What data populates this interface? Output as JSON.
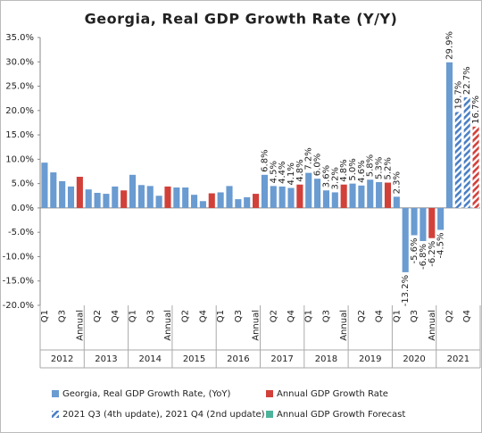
{
  "chart_data": {
    "type": "bar",
    "title": "Georgia, Real GDP Growth Rate (Y/Y)",
    "categories": [
      "Q1",
      null,
      "Q3",
      null,
      "Annual",
      null,
      "Q2",
      null,
      "Q4",
      null,
      "Q1",
      null,
      "Q3",
      null,
      "Annual",
      null,
      "Q2",
      null,
      "Q4",
      null,
      "Q1",
      null,
      "Q3",
      null,
      "Annual",
      null,
      "Q2",
      null,
      "Q4",
      null,
      "Q1",
      null,
      "Q3",
      null,
      "Annual",
      null,
      "Q2",
      null,
      "Q4",
      null,
      "Q1",
      null,
      "Q3",
      null,
      "Annual",
      null,
      "Q2",
      null,
      "Q4",
      null
    ],
    "groups": [
      "2012",
      "2013",
      "2014",
      "2015",
      "2016",
      "2017",
      "2018",
      "2019",
      "2020",
      "2021"
    ],
    "series": [
      {
        "name": "Georgia, Real GDP Growth Rate, (YoY)",
        "color": "#6a9bd1",
        "values": [
          9.3,
          7.3,
          5.5,
          4.4,
          null,
          3.8,
          3.1,
          2.9,
          4.4,
          null,
          6.8,
          4.7,
          4.5,
          2.5,
          null,
          4.2,
          4.2,
          2.7,
          1.4,
          null,
          3.2,
          4.5,
          1.8,
          2.2,
          null,
          6.8,
          4.5,
          4.4,
          4.1,
          null,
          7.2,
          6.0,
          3.6,
          3.2,
          null,
          5.0,
          4.6,
          5.8,
          5.3,
          null,
          2.3,
          -13.2,
          -5.6,
          -6.8,
          null,
          -4.5,
          29.9,
          null,
          null,
          null
        ],
        "value_labels": [
          null,
          null,
          null,
          null,
          null,
          null,
          null,
          null,
          null,
          null,
          null,
          null,
          null,
          null,
          null,
          null,
          null,
          null,
          null,
          null,
          null,
          null,
          null,
          null,
          null,
          "6.8%",
          "4.5%",
          "4.4%",
          "4.1%",
          null,
          "7.2%",
          "6.0%",
          "3.6%",
          "3.2%",
          null,
          "5.0%",
          "4.6%",
          "5.8%",
          "5.3%",
          null,
          "2.3%",
          "-13.2%",
          "-5.6%",
          "-6.8%",
          null,
          "-4.5%",
          "29.9%",
          null,
          null,
          null
        ]
      },
      {
        "name": "Annual GDP Growth Rate",
        "color": "#d2403a",
        "values": [
          null,
          null,
          null,
          null,
          6.4,
          null,
          null,
          null,
          null,
          3.6,
          null,
          null,
          null,
          null,
          4.4,
          null,
          null,
          null,
          null,
          3.0,
          null,
          null,
          null,
          null,
          2.9,
          null,
          null,
          null,
          null,
          4.8,
          null,
          null,
          null,
          null,
          4.8,
          null,
          null,
          null,
          null,
          5.2,
          null,
          null,
          null,
          null,
          -6.2,
          null,
          null,
          null,
          null,
          null
        ],
        "value_labels": [
          null,
          null,
          null,
          null,
          null,
          null,
          null,
          null,
          null,
          null,
          null,
          null,
          null,
          null,
          null,
          null,
          null,
          null,
          null,
          null,
          null,
          null,
          null,
          null,
          null,
          null,
          null,
          null,
          null,
          "4.8%",
          null,
          null,
          null,
          null,
          "4.8%",
          null,
          null,
          null,
          null,
          "5.2%",
          null,
          null,
          null,
          null,
          "-6.2%",
          null,
          null,
          null,
          null,
          null
        ]
      },
      {
        "name": "2021 Q3 (4th update), 2021 Q4 (2nd update)",
        "color": "#4a7fc4",
        "hatch": true,
        "values": [
          null,
          null,
          null,
          null,
          null,
          null,
          null,
          null,
          null,
          null,
          null,
          null,
          null,
          null,
          null,
          null,
          null,
          null,
          null,
          null,
          null,
          null,
          null,
          null,
          null,
          null,
          null,
          null,
          null,
          null,
          null,
          null,
          null,
          null,
          null,
          null,
          null,
          null,
          null,
          null,
          null,
          null,
          null,
          null,
          null,
          null,
          null,
          19.7,
          22.7,
          null
        ],
        "value_labels": [
          null,
          null,
          null,
          null,
          null,
          null,
          null,
          null,
          null,
          null,
          null,
          null,
          null,
          null,
          null,
          null,
          null,
          null,
          null,
          null,
          null,
          null,
          null,
          null,
          null,
          null,
          null,
          null,
          null,
          null,
          null,
          null,
          null,
          null,
          null,
          null,
          null,
          null,
          null,
          null,
          null,
          null,
          null,
          null,
          null,
          null,
          null,
          "19.7%",
          "22.7%",
          null
        ]
      },
      {
        "name": "Annual GDP Growth Forecast",
        "color": "#4db39b",
        "hatch": true,
        "hatch_color": "#d2403a",
        "values": [
          null,
          null,
          null,
          null,
          null,
          null,
          null,
          null,
          null,
          null,
          null,
          null,
          null,
          null,
          null,
          null,
          null,
          null,
          null,
          null,
          null,
          null,
          null,
          null,
          null,
          null,
          null,
          null,
          null,
          null,
          null,
          null,
          null,
          null,
          null,
          null,
          null,
          null,
          null,
          null,
          null,
          null,
          null,
          null,
          null,
          null,
          null,
          null,
          null,
          16.7
        ],
        "value_labels": [
          null,
          null,
          null,
          null,
          null,
          null,
          null,
          null,
          null,
          null,
          null,
          null,
          null,
          null,
          null,
          null,
          null,
          null,
          null,
          null,
          null,
          null,
          null,
          null,
          null,
          null,
          null,
          null,
          null,
          null,
          null,
          null,
          null,
          null,
          null,
          null,
          null,
          null,
          null,
          null,
          null,
          null,
          null,
          null,
          null,
          null,
          null,
          null,
          null,
          "16.7%"
        ]
      }
    ],
    "ylim": [
      -20,
      35
    ],
    "yticks": [
      {
        "value": 35,
        "label": "35.0%"
      },
      {
        "value": 30,
        "label": "30.0%"
      },
      {
        "value": 25,
        "label": "25.0%"
      },
      {
        "value": 20,
        "label": "20.0%"
      },
      {
        "value": 15,
        "label": "15.0%"
      },
      {
        "value": 10,
        "label": "10.0%"
      },
      {
        "value": 5,
        "label": "5.0%"
      },
      {
        "value": 0,
        "label": "0.0%"
      },
      {
        "value": -5,
        "label": "-5.0%"
      },
      {
        "value": -10,
        "label": "-10.0%"
      },
      {
        "value": -15,
        "label": "-15.0%"
      },
      {
        "value": -20,
        "label": "-20.0%"
      }
    ],
    "grid": false,
    "legend": "bottom"
  }
}
